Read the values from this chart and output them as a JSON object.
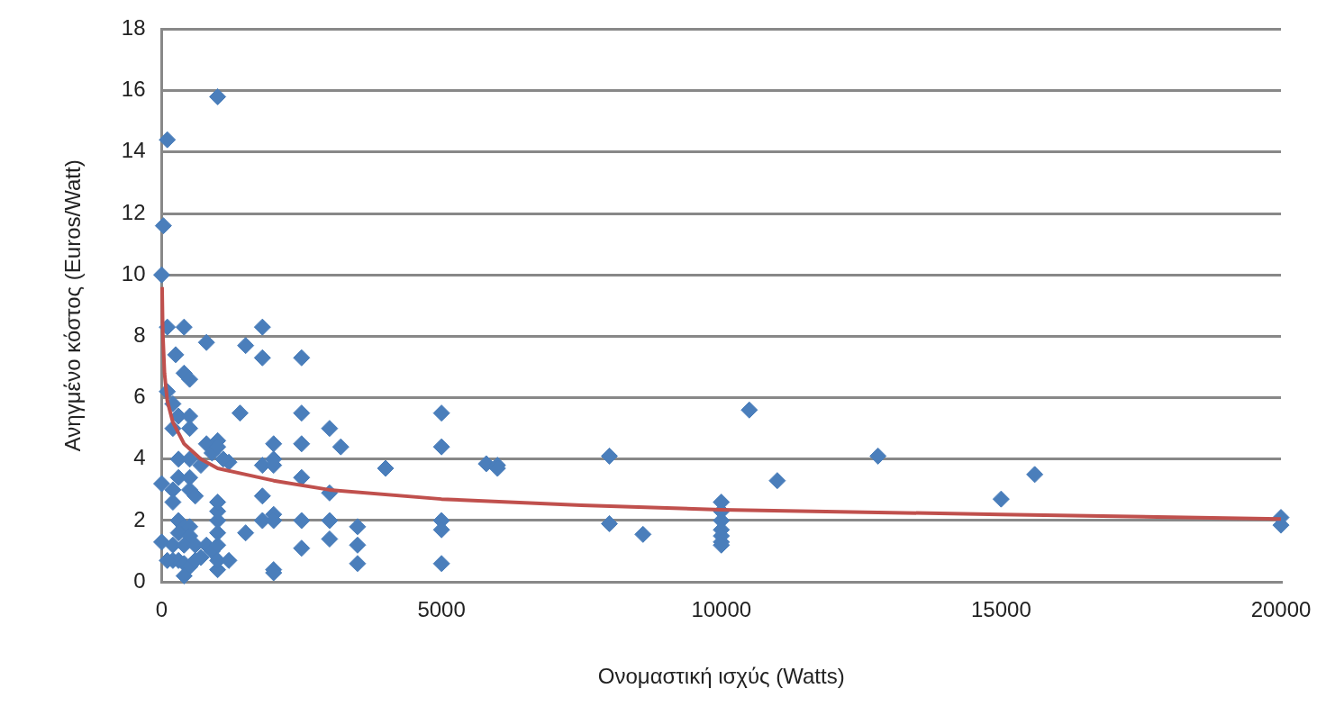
{
  "chart_data": {
    "type": "scatter",
    "xlabel": "Ονομαστική ισχύς (Watts)",
    "ylabel": "Ανηγμένο κόστος (Euros/Watt)",
    "xlim": [
      0,
      20000
    ],
    "xticks": [
      0,
      5000,
      10000,
      15000,
      20000
    ],
    "ylim": [
      0,
      18
    ],
    "yticks": [
      0,
      2,
      4,
      6,
      8,
      10,
      12,
      14,
      16,
      18
    ],
    "grid": "y",
    "legend": false,
    "marker": "diamond",
    "series": [
      {
        "type": "scatter",
        "color": "#4a7ebb",
        "x": [
          0,
          0,
          0,
          30,
          100,
          1000,
          100,
          400,
          250,
          800,
          400,
          500,
          100,
          200,
          300,
          500,
          500,
          200,
          1400,
          1500,
          1800,
          1800,
          2500,
          300,
          500,
          800,
          900,
          1000,
          1000,
          1200,
          1100,
          700,
          300,
          200,
          200,
          500,
          500,
          600,
          300,
          400,
          300,
          500,
          500,
          200,
          400,
          600,
          800,
          200,
          300,
          400,
          500,
          600,
          700,
          400,
          100,
          900,
          1000,
          1000,
          1000,
          1000,
          1000,
          1000,
          1000,
          1200,
          1500,
          1800,
          1800,
          1800,
          2000,
          2000,
          2000,
          2000,
          2000,
          2000,
          2000,
          2500,
          2500,
          2500,
          2500,
          2500,
          3000,
          3000,
          3000,
          3000,
          3200,
          3500,
          3500,
          3500,
          4000,
          5000,
          5000,
          5000,
          5000,
          5000,
          5800,
          6000,
          6000,
          8000,
          8000,
          8600,
          10000,
          10000,
          10000,
          10000,
          10000,
          10000,
          10000,
          10500,
          11000,
          12800,
          15000,
          15600,
          20000,
          20000
        ],
        "values": [
          1.3,
          3.2,
          10,
          11.6,
          14.4,
          15.8,
          8.3,
          8.3,
          7.4,
          7.8,
          6.8,
          6.6,
          6.2,
          5.8,
          5.4,
          5.4,
          5,
          5,
          5.5,
          7.7,
          8.3,
          7.3,
          7.3,
          4,
          4,
          4.5,
          4.2,
          4.6,
          4.4,
          3.9,
          4,
          3.8,
          3.4,
          3,
          2.6,
          3.4,
          3,
          2.8,
          2,
          1.8,
          1.6,
          1.8,
          1.5,
          1.2,
          1.2,
          1.2,
          1.2,
          0.7,
          0.7,
          0.6,
          0.5,
          0.7,
          0.8,
          0.2,
          0.7,
          1,
          0.4,
          0.7,
          1.2,
          1.6,
          2,
          2.3,
          2.6,
          0.7,
          1.6,
          2.8,
          3.8,
          2,
          2.2,
          2,
          3.8,
          4,
          4.5,
          0.4,
          0.3,
          5.5,
          4.5,
          3.4,
          2,
          1.1,
          5,
          2.9,
          2,
          1.4,
          4.4,
          1.8,
          1.2,
          0.6,
          3.7,
          5.5,
          4.4,
          2,
          1.7,
          0.6,
          3.85,
          3.8,
          3.7,
          4.1,
          1.9,
          1.55,
          2.6,
          2.3,
          2,
          1.7,
          1.5,
          1.3,
          1.2,
          5.6,
          3.3,
          4.1,
          2.7,
          3.5,
          2.1,
          1.85
        ]
      },
      {
        "type": "line",
        "color": "#c0504d",
        "marker": "none",
        "x": [
          7,
          20,
          50,
          100,
          200,
          400,
          700,
          1000,
          2000,
          3000,
          5000,
          7500,
          10000,
          15000,
          20000
        ],
        "values": [
          9.6,
          8.1,
          6.8,
          5.9,
          5.2,
          4.5,
          4,
          3.7,
          3.3,
          3,
          2.7,
          2.5,
          2.35,
          2.2,
          2.05
        ]
      }
    ]
  }
}
